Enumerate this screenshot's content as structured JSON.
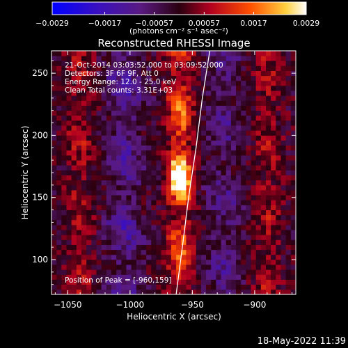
{
  "chart_data": {
    "type": "heatmap",
    "title": "Reconstructed RHESSI Image",
    "xlabel": "Heliocentric X (arcsec)",
    "ylabel": "Heliocentric Y (arcsec)",
    "xlim": [
      -1063,
      -867
    ],
    "ylim": [
      72,
      268
    ],
    "x_ticks": [
      -1050,
      -1000,
      -950,
      -900
    ],
    "y_ticks": [
      100,
      150,
      200,
      250
    ],
    "x_tick_labels": [
      "−1050",
      "−1000",
      "−950",
      "−900"
    ],
    "y_tick_labels": [
      "100",
      "150",
      "200",
      "250"
    ],
    "colorbar": {
      "ticks": [
        -0.0029,
        -0.0017,
        -0.00057,
        0.00057,
        0.0017,
        0.0029
      ],
      "tick_labels": [
        "−0.0029",
        "−0.0017",
        "−0.00057",
        "0.00057",
        "0.0017",
        "0.0029"
      ],
      "units": "(photons cm⁻² s⁻¹ asec⁻²)",
      "range": [
        -0.0029,
        0.0029
      ],
      "colormap": "blue-purple-red-yellow-white"
    },
    "annotations": [
      "21-Oct-2014 03:03:52.000 to 03:09:52.000",
      "Detectors: 3F 6F 9F, Att 0",
      "Energy Range: 12.0 - 25.0 keV",
      "Clean     Total counts: 3.31E+03"
    ],
    "peak_label": "Position of Peak = [-960,159]",
    "peak": [
      -960,
      159
    ],
    "limb": [
      [
        -963,
        72
      ],
      [
        -958,
        110
      ],
      [
        -953,
        150
      ],
      [
        -947,
        190
      ],
      [
        -942,
        230
      ],
      [
        -936,
        268
      ]
    ],
    "bright_bands": [
      {
        "x_center": -1040,
        "intensity": 0.0012
      },
      {
        "x_center": -960,
        "intensity": 0.0026
      },
      {
        "x_center": -890,
        "intensity": 0.0012
      }
    ],
    "dark_bands": [
      {
        "x_center": -1005,
        "intensity": -0.001
      },
      {
        "x_center": -925,
        "intensity": -0.0007
      }
    ]
  },
  "timestamp": "18-May-2022 11:39"
}
